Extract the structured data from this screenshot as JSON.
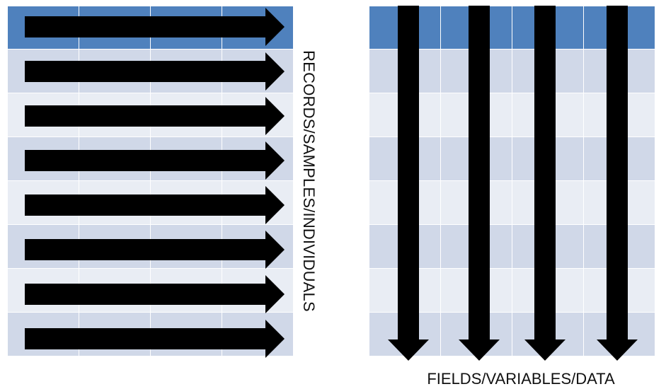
{
  "left_diagram": {
    "label": "RECORDS/SAMPLES/INDIVIDUALS",
    "columns": 4,
    "header_rows": 1,
    "body_rows": 7,
    "arrow_direction": "right"
  },
  "right_diagram": {
    "label": "FIELDS/VARIABLES/DATA",
    "columns": 4,
    "header_rows": 1,
    "body_rows": 7,
    "arrow_direction": "down"
  },
  "colors": {
    "header": "#4f81bd",
    "row_odd": "#d0d8e8",
    "row_even": "#e9edf4",
    "arrow": "#000000"
  }
}
